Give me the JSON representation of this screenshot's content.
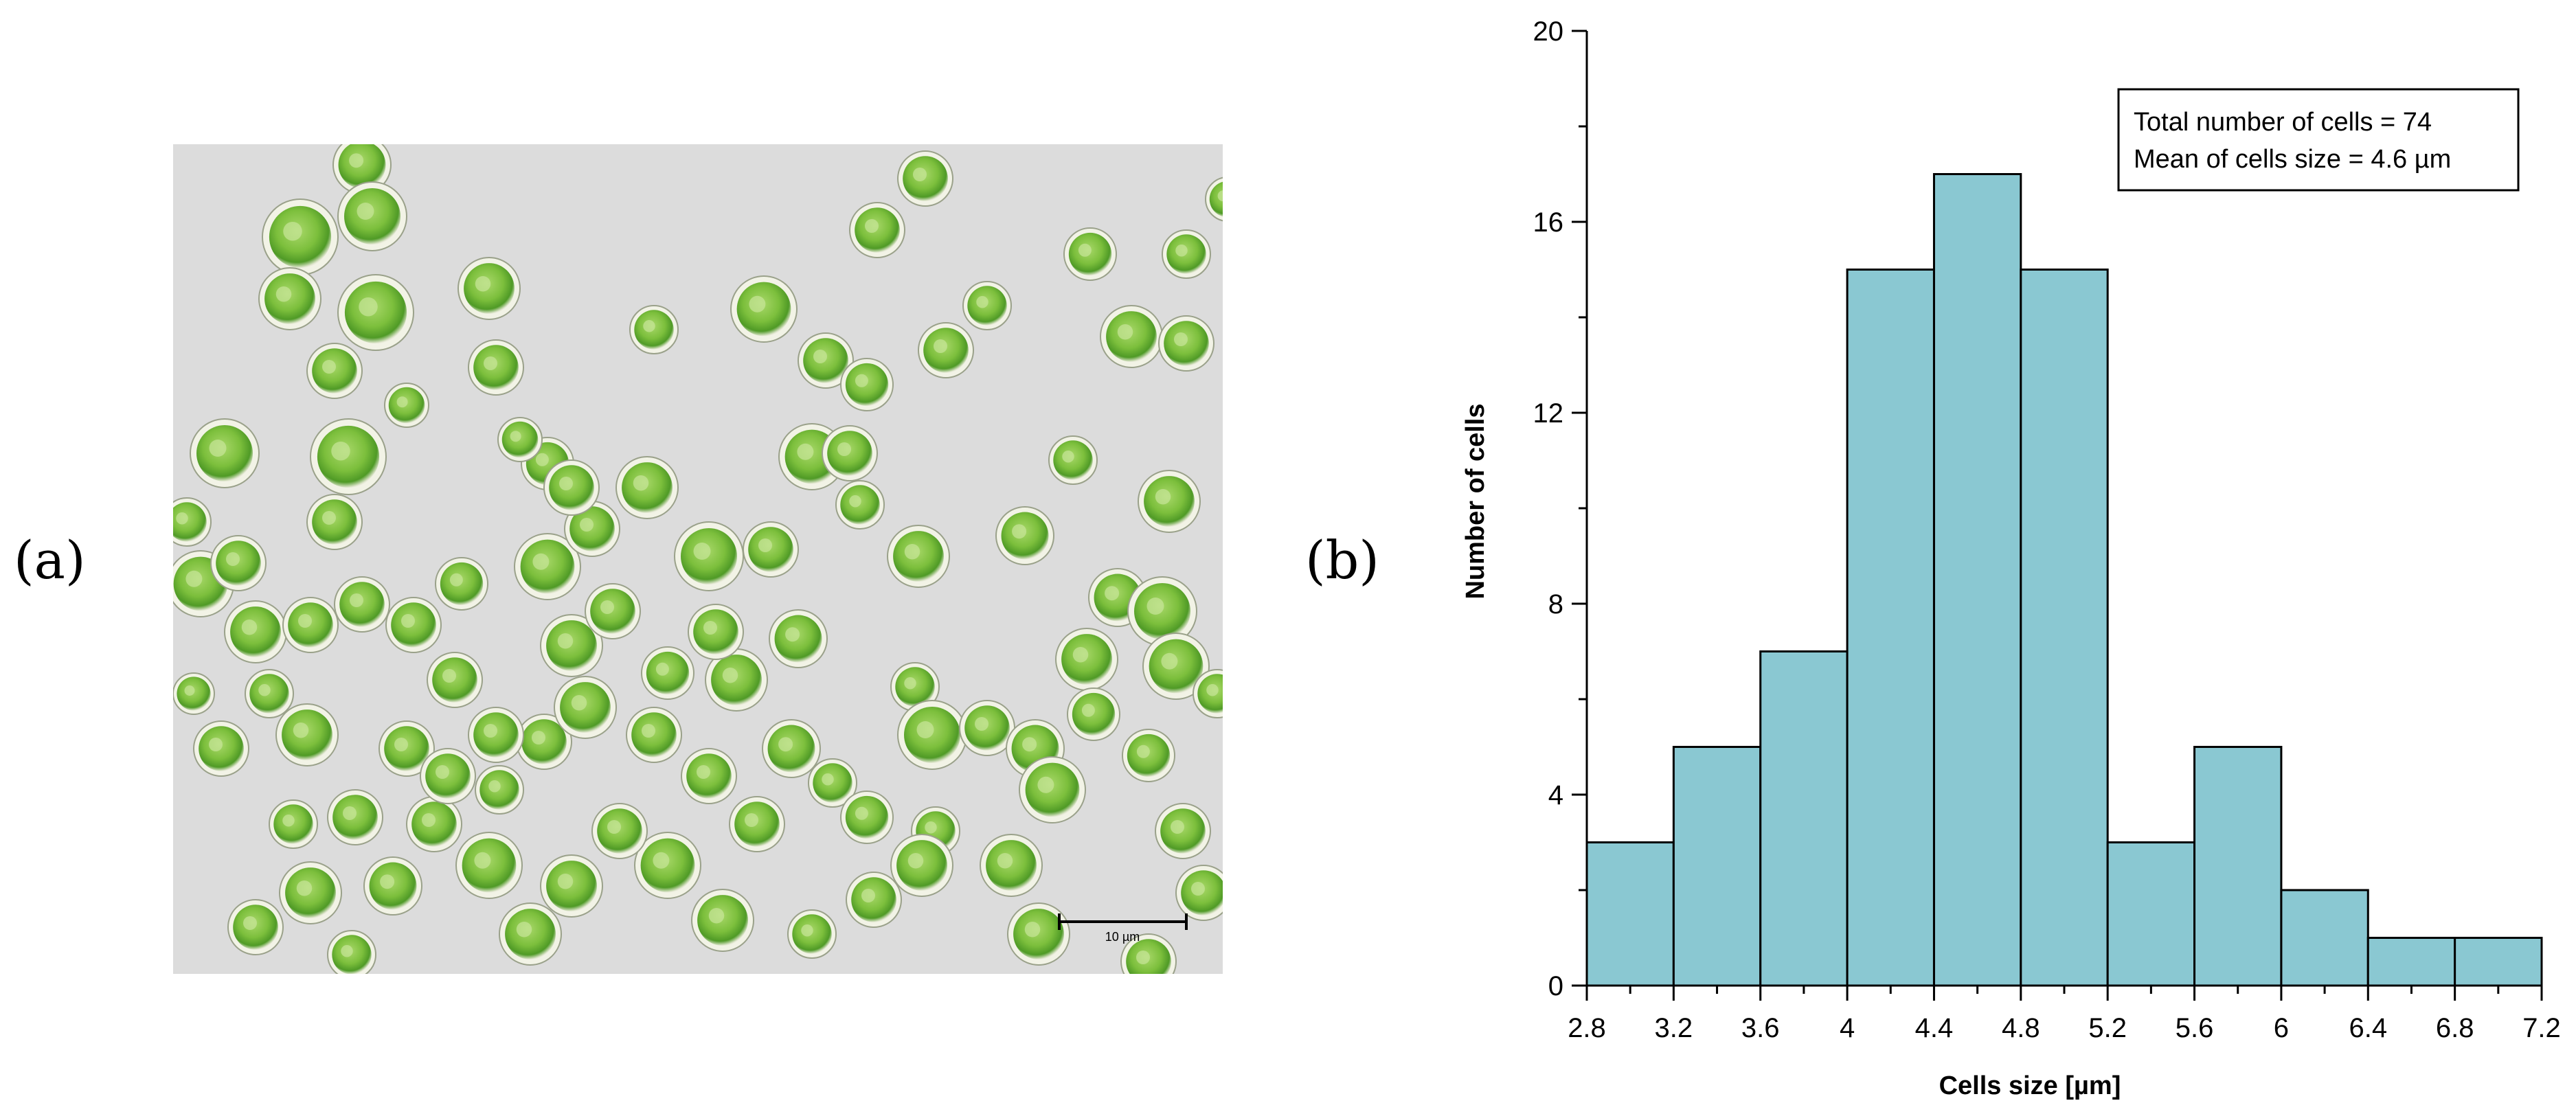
{
  "panels": {
    "a_label": "(a)",
    "b_label": "(b)"
  },
  "micrograph": {
    "scale_bar_label": "10 µm",
    "background_color": "#dcdcdc",
    "cell_color": "#7cbf3c"
  },
  "chart_data": {
    "type": "bar",
    "bin_edges": [
      2.8,
      3.2,
      3.6,
      4.0,
      4.4,
      4.8,
      5.2,
      5.6,
      6.0,
      6.4,
      6.8,
      7.2
    ],
    "values": [
      3,
      5,
      7,
      15,
      17,
      15,
      3,
      5,
      2,
      1,
      1
    ],
    "xlabel": "Cells size [µm]",
    "ylabel": "Number of cells",
    "xlim": [
      2.8,
      7.2
    ],
    "ylim": [
      0,
      20
    ],
    "xticks": [
      "2.8",
      "3.2",
      "3.6",
      "4",
      "4.4",
      "4.8",
      "5.2",
      "5.6",
      "6",
      "6.4",
      "6.8",
      "7.2"
    ],
    "yticks": [
      "0",
      "4",
      "8",
      "12",
      "16",
      "20"
    ],
    "annotation": [
      "Total number of cells = 74",
      "Mean of cells size = 4.6 µm"
    ],
    "bar_color": "#8ac8d2",
    "grid": false
  }
}
